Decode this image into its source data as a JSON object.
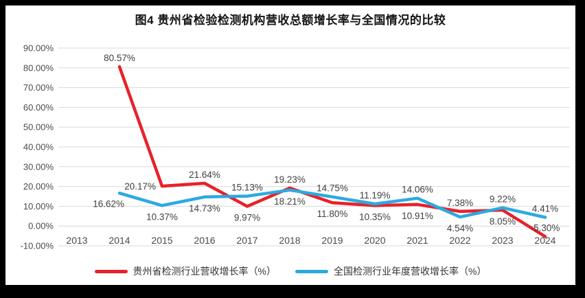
{
  "frame_color": "#000000",
  "background_color": "#FFFFFF",
  "chart_data": {
    "type": "line",
    "title": "图4 贵州省检验检测机构营收总额增长率与全国情况的比较",
    "categories": [
      "2013",
      "2014",
      "2015",
      "2016",
      "2017",
      "2018",
      "2019",
      "2020",
      "2021",
      "2022",
      "2023",
      "2024"
    ],
    "ylim": [
      -10,
      90
    ],
    "ytick_step": 10,
    "ytick_labels": [
      "90.00%",
      "80.00%",
      "70.00%",
      "60.00%",
      "50.00%",
      "40.00%",
      "30.00%",
      "20.00%",
      "10.00%",
      "0.00%",
      "-10.00%"
    ],
    "grid": true,
    "gridline_color": "#D9D9D9",
    "axis_label_color": "#4A4A4A",
    "data_label_color": "#3F3F3F",
    "legend_position": "bottom",
    "series": [
      {
        "name": "贵州省检测行业营收增长率（%）",
        "color": "#E8212A",
        "values": [
          null,
          80.57,
          20.17,
          21.64,
          9.97,
          19.23,
          11.8,
          10.35,
          10.91,
          7.38,
          8.05,
          -5.3
        ],
        "label_texts": [
          null,
          "80.57%",
          "20.17%",
          "21.64%",
          "9.97%",
          "19.23%",
          "11.80%",
          "10.35%",
          "10.91%",
          "7.38%",
          "8.05%",
          "-5.30%"
        ],
        "label_positions": [
          null,
          "above",
          "left",
          "above",
          "below",
          "above",
          "below",
          "below",
          "below",
          "above",
          "below",
          "above"
        ]
      },
      {
        "name": "全国检测行业年度营收增长率（%）",
        "color": "#2BAAE1",
        "values": [
          null,
          16.62,
          10.37,
          14.73,
          15.13,
          18.21,
          14.75,
          11.19,
          14.06,
          4.54,
          9.22,
          4.41
        ],
        "label_texts": [
          null,
          "16.62%",
          "10.37%",
          "14.73%",
          "15.13%",
          "18.21%",
          "14.75%",
          "11.19%",
          "14.06%",
          "4.54%",
          "9.22%",
          "4.41%"
        ],
        "label_positions": [
          null,
          "left-below",
          "below",
          "below",
          "above",
          "below",
          "above",
          "above",
          "above",
          "below",
          "above",
          "above"
        ]
      }
    ]
  }
}
